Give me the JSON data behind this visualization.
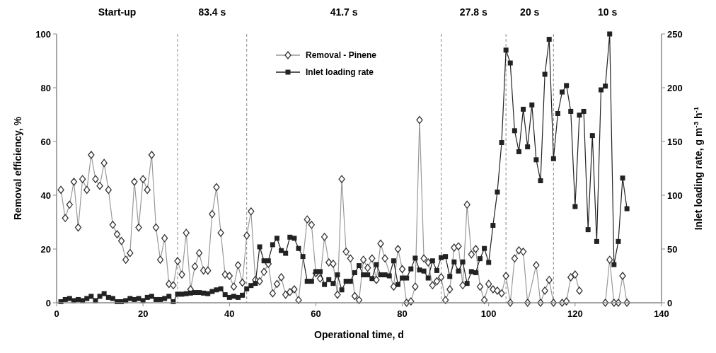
{
  "chart_data": {
    "type": "line",
    "xlabel": "Operational time, d",
    "ylabel": "Removal efficiency, %",
    "y2label": "Inlet loading rate, g m$^{-3}$ h$^{-1}$",
    "xlim": [
      0,
      140
    ],
    "xticks": [
      0,
      20,
      40,
      60,
      80,
      100,
      120,
      140
    ],
    "ylim": [
      0,
      100
    ],
    "yticks": [
      0,
      20,
      40,
      60,
      80,
      100
    ],
    "y2lim": [
      0,
      250
    ],
    "y2ticks": [
      0,
      50,
      100,
      150,
      200,
      250
    ],
    "legend": "top",
    "grid": false,
    "series": [
      {
        "name": "Removal - Pinene",
        "color": "#999999",
        "marker": "diamond",
        "x": [
          1,
          2,
          3,
          4,
          5,
          6,
          7,
          8,
          9,
          10,
          11,
          12,
          13,
          14,
          15,
          16,
          17,
          18,
          19,
          20,
          21,
          22,
          23,
          24,
          25,
          26,
          27,
          28,
          29,
          30,
          31,
          32,
          33,
          34,
          35,
          36,
          37,
          38,
          39,
          40,
          41,
          42,
          43,
          44,
          45,
          46,
          47,
          48,
          49,
          50,
          51,
          52,
          53,
          54,
          55,
          56,
          58,
          59,
          60,
          61,
          62,
          63,
          64,
          65,
          66,
          67,
          68,
          69,
          70,
          71,
          72,
          73,
          74,
          75,
          76,
          78,
          79,
          80,
          81,
          82,
          83,
          84,
          85,
          86,
          87,
          88,
          89,
          90,
          91,
          92,
          93,
          94,
          95,
          96,
          97,
          98,
          99,
          100,
          101,
          102,
          103,
          104,
          105,
          106,
          107,
          108,
          109,
          111,
          112,
          113,
          114,
          115,
          117,
          118,
          119,
          120,
          121,
          124,
          127,
          128,
          129,
          130,
          131,
          132
        ],
        "values": [
          42,
          31.5,
          36.5,
          45,
          28,
          46,
          42,
          55,
          46,
          43.5,
          52,
          42,
          29,
          25.5,
          23,
          16,
          18.5,
          45,
          28,
          46,
          42,
          55,
          28,
          16,
          24,
          7,
          6.5,
          15.5,
          10.5,
          26,
          5,
          13.5,
          18.5,
          12,
          12,
          33,
          43,
          26,
          10.5,
          10,
          6,
          14,
          7.5,
          25,
          34,
          8.5,
          8,
          11.5,
          14.5,
          3.5,
          7,
          9.5,
          3,
          4,
          5,
          1,
          31,
          29,
          11,
          9,
          24.5,
          15,
          14.5,
          3,
          46,
          19,
          16.5,
          2.5,
          1,
          16,
          13,
          16.5,
          8.5,
          22,
          16.5,
          6,
          20,
          12.5,
          0,
          0.5,
          6,
          68,
          16.5,
          15,
          6.5,
          8,
          9.5,
          1,
          5,
          20.5,
          21,
          6.5,
          36.5,
          18,
          20,
          6,
          1,
          7,
          5,
          4.5,
          3.5,
          10,
          0,
          16.5,
          19.5,
          19,
          0,
          14,
          0,
          4.5,
          8.5,
          0,
          0,
          0.5,
          9.5,
          10.5,
          4.5,
          null,
          0,
          16,
          0,
          0,
          10,
          0
        ]
      },
      {
        "name": "Inlet loading rate",
        "color": "#222222",
        "marker": "square",
        "axis": "y2",
        "x": [
          1,
          2,
          3,
          4,
          5,
          6,
          7,
          8,
          9,
          10,
          11,
          12,
          13,
          14,
          15,
          16,
          17,
          18,
          19,
          20,
          21,
          22,
          23,
          24,
          25,
          26,
          27,
          28,
          29,
          30,
          31,
          32,
          33,
          34,
          35,
          36,
          37,
          38,
          39,
          40,
          41,
          42,
          43,
          44,
          45,
          46,
          47,
          48,
          49,
          50,
          51,
          52,
          53,
          54,
          55,
          56,
          57,
          58,
          59,
          60,
          61,
          62,
          63,
          64,
          65,
          66,
          67,
          68,
          69,
          70,
          71,
          72,
          73,
          74,
          75,
          76,
          77,
          78,
          79,
          80,
          81,
          82,
          83,
          84,
          85,
          86,
          87,
          88,
          89,
          90,
          91,
          92,
          93,
          94,
          95,
          96,
          97,
          98,
          99,
          100,
          101,
          102,
          103,
          104,
          105,
          106,
          107,
          108,
          109,
          110,
          111,
          112,
          113,
          114,
          115,
          116,
          117,
          118,
          119,
          120,
          121,
          122,
          123,
          124,
          125,
          126,
          127,
          128,
          129,
          130,
          131,
          132
        ],
        "values": [
          1,
          3,
          4,
          2,
          3,
          2,
          4,
          6,
          2,
          6,
          8.5,
          5,
          4,
          1,
          1,
          2,
          4,
          3,
          4,
          2,
          5,
          6,
          3,
          3,
          4,
          6,
          1,
          8,
          8,
          8.5,
          9,
          9.5,
          9.5,
          9,
          8.5,
          10.5,
          12,
          13,
          7.5,
          5,
          6,
          5,
          7,
          13,
          16,
          18,
          52,
          39,
          39,
          54,
          60,
          48.5,
          46,
          61,
          60,
          50.5,
          43,
          20,
          20,
          29,
          29,
          17,
          21.5,
          18,
          26,
          12,
          20,
          20,
          28,
          34.5,
          26,
          26,
          22.5,
          35.5,
          26,
          26,
          25,
          39,
          17,
          23,
          23,
          31.5,
          41.5,
          30.5,
          29.5,
          23,
          39,
          30,
          42,
          43,
          24.5,
          38,
          29.5,
          38,
          18,
          29,
          28,
          41,
          50.5,
          37.5,
          72,
          103,
          149,
          235,
          223,
          160,
          140.5,
          180,
          145,
          184,
          133,
          113.5,
          212.5,
          245,
          134,
          176,
          196,
          202,
          178,
          89.5,
          174.5,
          178,
          68,
          155.5,
          57,
          198,
          201.5,
          250,
          35.5,
          57,
          116,
          87.5
        ]
      }
    ],
    "ref_lines": [
      {
        "axis": "x",
        "value": 28,
        "line_style": "dashed"
      },
      {
        "axis": "x",
        "value": 44,
        "line_style": "dashed"
      },
      {
        "axis": "x",
        "value": 89,
        "line_style": "dashed"
      },
      {
        "axis": "x",
        "value": 104,
        "line_style": "dashed"
      },
      {
        "axis": "x",
        "value": 115,
        "line_style": "dashed"
      }
    ],
    "annotations": [
      "Start-up",
      "83.4 s",
      "41.7 s",
      "27.8 s",
      "20 s",
      "10 s"
    ]
  }
}
